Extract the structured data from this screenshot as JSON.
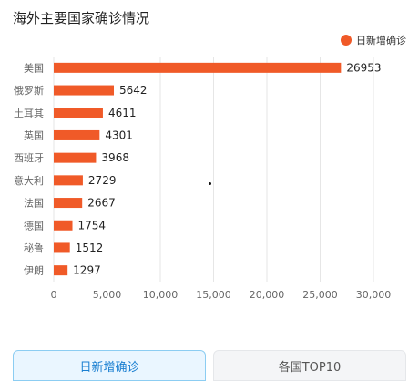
{
  "colors": {
    "bar": "#f05a28",
    "grid": "#e6e6e6",
    "tick": "#666666",
    "value": "#222222"
  },
  "tabs": [
    {
      "label": "日新增确诊",
      "active": true
    },
    {
      "label": "各国TOP10",
      "active": false
    }
  ],
  "chart_data": {
    "type": "bar",
    "orientation": "horizontal",
    "title": "海外主要国家确诊情况",
    "legend": [
      "日新增确诊"
    ],
    "legend_position": "top-right",
    "categories": [
      "美国",
      "俄罗斯",
      "土耳其",
      "英国",
      "西班牙",
      "意大利",
      "法国",
      "德国",
      "秘鲁",
      "伊朗"
    ],
    "series": [
      {
        "name": "日新增确诊",
        "values": [
          26953,
          5642,
          4611,
          4301,
          3968,
          2729,
          2667,
          1754,
          1512,
          1297
        ]
      }
    ],
    "xlim": [
      0,
      30000
    ],
    "xticks": [
      "0",
      "5,000",
      "10,000",
      "15,000",
      "20,000",
      "25,000",
      "30,000"
    ],
    "grid": "vertical"
  }
}
